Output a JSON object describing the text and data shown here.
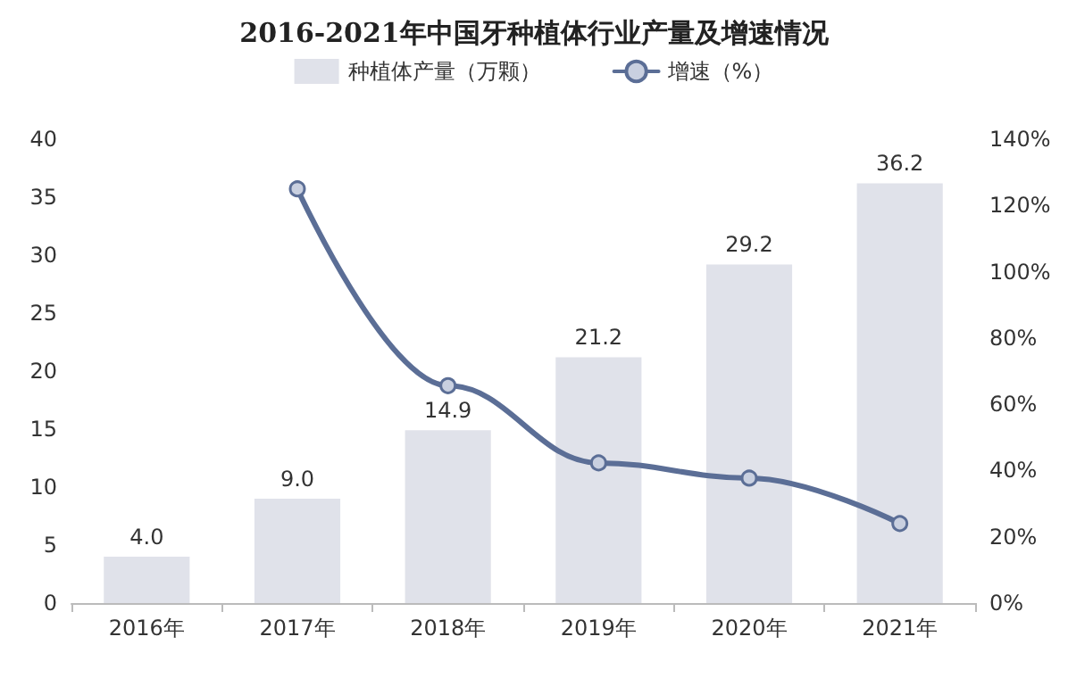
{
  "chart_data": {
    "type": "bar",
    "title": "2016-2021年中国牙种植体行业产量及增速情况",
    "categories": [
      "2016年",
      "2017年",
      "2018年",
      "2019年",
      "2020年",
      "2021年"
    ],
    "series": [
      {
        "name": "种植体产量（万颗）",
        "color": "#e0e2ea",
        "values": [
          4.0,
          9.0,
          14.9,
          21.2,
          29.2,
          36.2
        ],
        "value_labels": [
          "4.0",
          "9.0",
          "14.9",
          "21.2",
          "29.2",
          "36.2"
        ]
      },
      {
        "name": "增速（%）",
        "type": "line",
        "axis": "y2",
        "color": "#5b6e96",
        "values": [
          null,
          125,
          65.6,
          42.3,
          37.7,
          24.0
        ],
        "marker": "circle",
        "line_style": "solid"
      }
    ],
    "ylim": [
      0,
      40
    ],
    "yticks": [
      0,
      5,
      10,
      15,
      20,
      25,
      30,
      35,
      40
    ],
    "y2lim": [
      0,
      140
    ],
    "y2ticks": [
      {
        "value": 0,
        "label": "0%"
      },
      {
        "value": 20,
        "label": "20%"
      },
      {
        "value": 40,
        "label": "40%"
      },
      {
        "value": 60,
        "label": "60%"
      },
      {
        "value": 80,
        "label": "80%"
      },
      {
        "value": 100,
        "label": "100%"
      },
      {
        "value": 120,
        "label": "120%"
      },
      {
        "value": 140,
        "label": "140%"
      }
    ],
    "legend": "top",
    "grid": false
  }
}
